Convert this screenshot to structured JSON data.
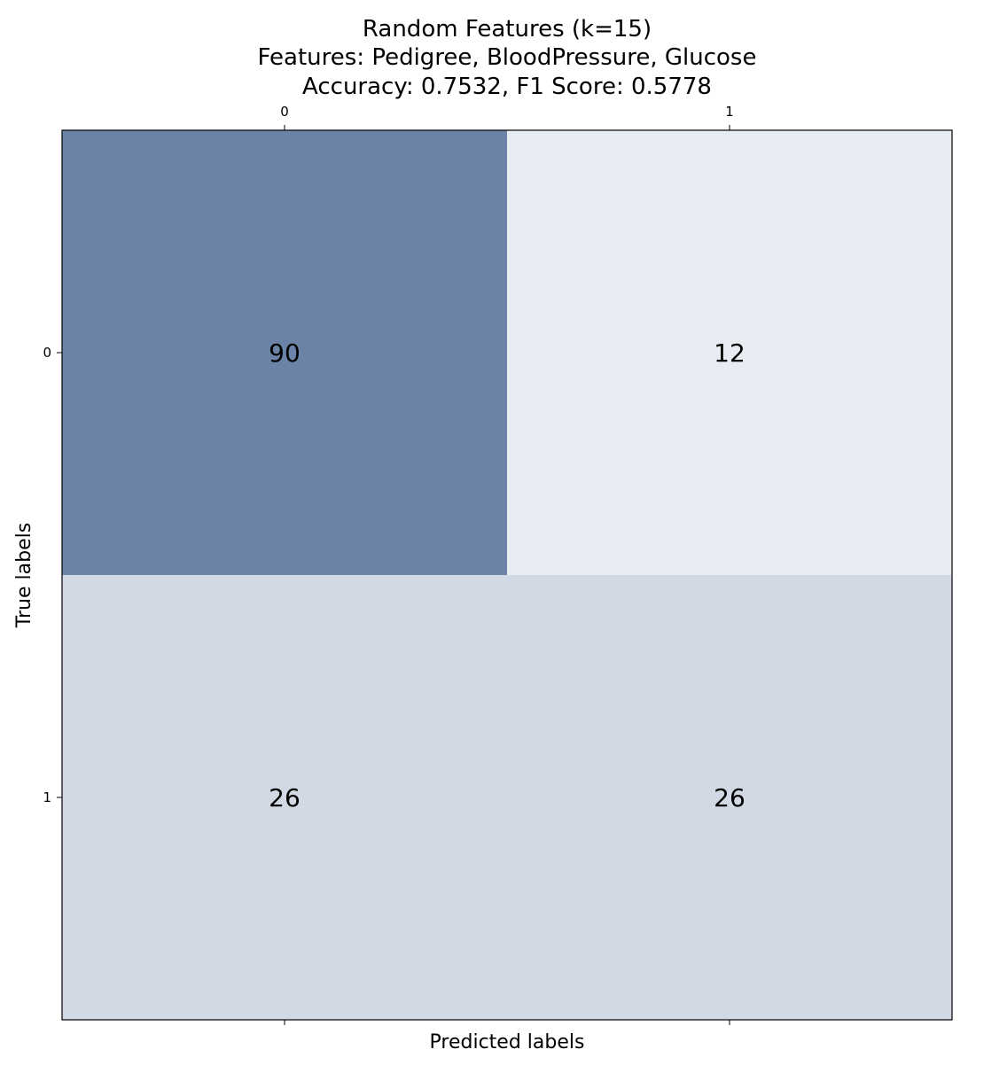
{
  "chart_data": {
    "type": "heatmap",
    "title_lines": [
      "Random Features (k=15)",
      "Features: Pedigree, BloodPressure, Glucose",
      "Accuracy: 0.7532, F1 Score: 0.5778"
    ],
    "xlabel": "Predicted labels",
    "ylabel": "True labels",
    "x_categories": [
      "0",
      "1"
    ],
    "y_categories": [
      "0",
      "1"
    ],
    "matrix": [
      [
        90,
        12
      ],
      [
        26,
        26
      ]
    ],
    "color_scale": {
      "min": 0,
      "max": 90,
      "low_color": "#f7fbff",
      "high_color": "#08306b",
      "alpha": 0.6
    },
    "grid": false,
    "xaxis_position": "top"
  }
}
